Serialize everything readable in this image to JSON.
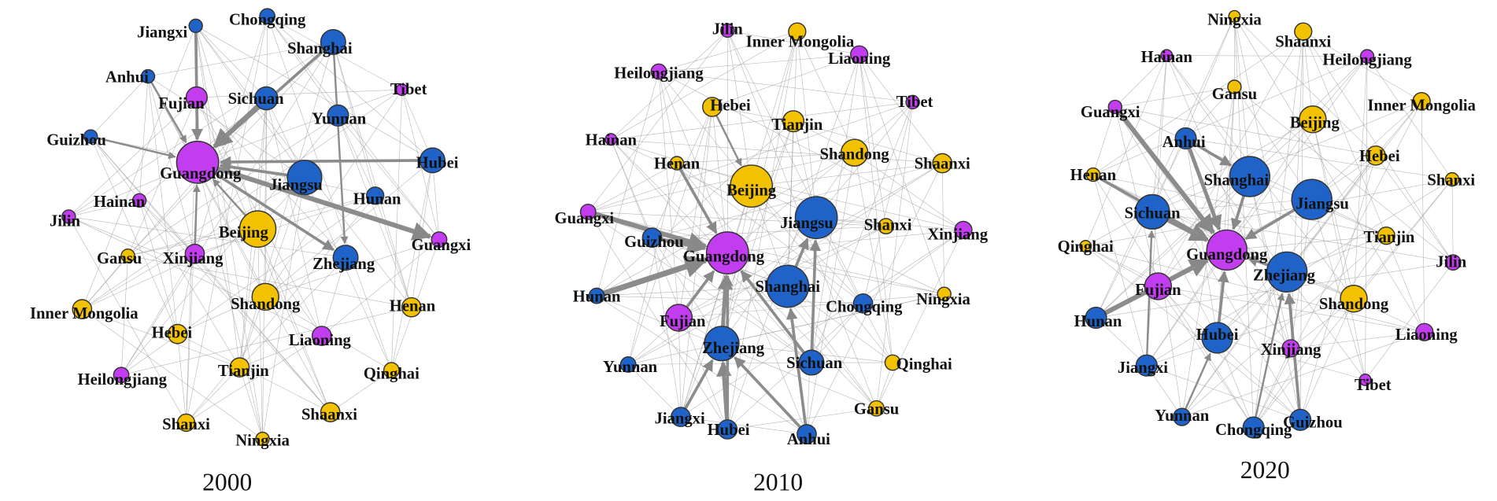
{
  "panels": [
    {
      "caption": "2000",
      "nodes": [
        "Jiangxi",
        "Chongqing",
        "Shanghai",
        "Anhui",
        "Fujian",
        "Sichuan",
        "Tibet",
        "Yunnan",
        "Guizhou",
        "Guangdong",
        "Jiangsu",
        "Hubei",
        "Hunan",
        "Hainan",
        "Jilin",
        "Beijing",
        "Guangxi",
        "Gansu",
        "Xinjiang",
        "Zhejiang",
        "Inner Mongolia",
        "Shandong",
        "Henan",
        "Hebei",
        "Liaoning",
        "Tianjin",
        "Qinghai",
        "Heilongjiang",
        "Shaanxi",
        "Shanxi",
        "Ningxia"
      ]
    },
    {
      "caption": "2010",
      "nodes": [
        "Jilin",
        "Inner Mongolia",
        "Liaoning",
        "Heilongjiang",
        "Hebei",
        "Tibet",
        "Tianjin",
        "Hainan",
        "Shandong",
        "Shaanxi",
        "Henan",
        "Beijing",
        "Guangxi",
        "Jiangsu",
        "Shanxi",
        "Xinjiang",
        "Guizhou",
        "Guangdong",
        "Shanghai",
        "Ningxia",
        "Hunan",
        "Fujian",
        "Chongqing",
        "Zhejiang",
        "Sichuan",
        "Qinghai",
        "Yunnan",
        "Gansu",
        "Jiangxi",
        "Hubei",
        "Anhui"
      ]
    },
    {
      "caption": "2020",
      "nodes": [
        "Ningxia",
        "Shaanxi",
        "Hainan",
        "Heilongjiang",
        "Gansu",
        "Inner Mongolia",
        "Guangxi",
        "Beijing",
        "Anhui",
        "Hebei",
        "Henan",
        "Shanghai",
        "Shanxi",
        "Jiangsu",
        "Sichuan",
        "Tianjin",
        "Qinghai",
        "Guangdong",
        "Jilin",
        "Zhejiang",
        "Fujian",
        "Shandong",
        "Hunan",
        "Hubei",
        "Liaoning",
        "Xinjiang",
        "Jiangxi",
        "Tibet",
        "Yunnan",
        "Chongqing",
        "Guizhou"
      ]
    }
  ]
}
